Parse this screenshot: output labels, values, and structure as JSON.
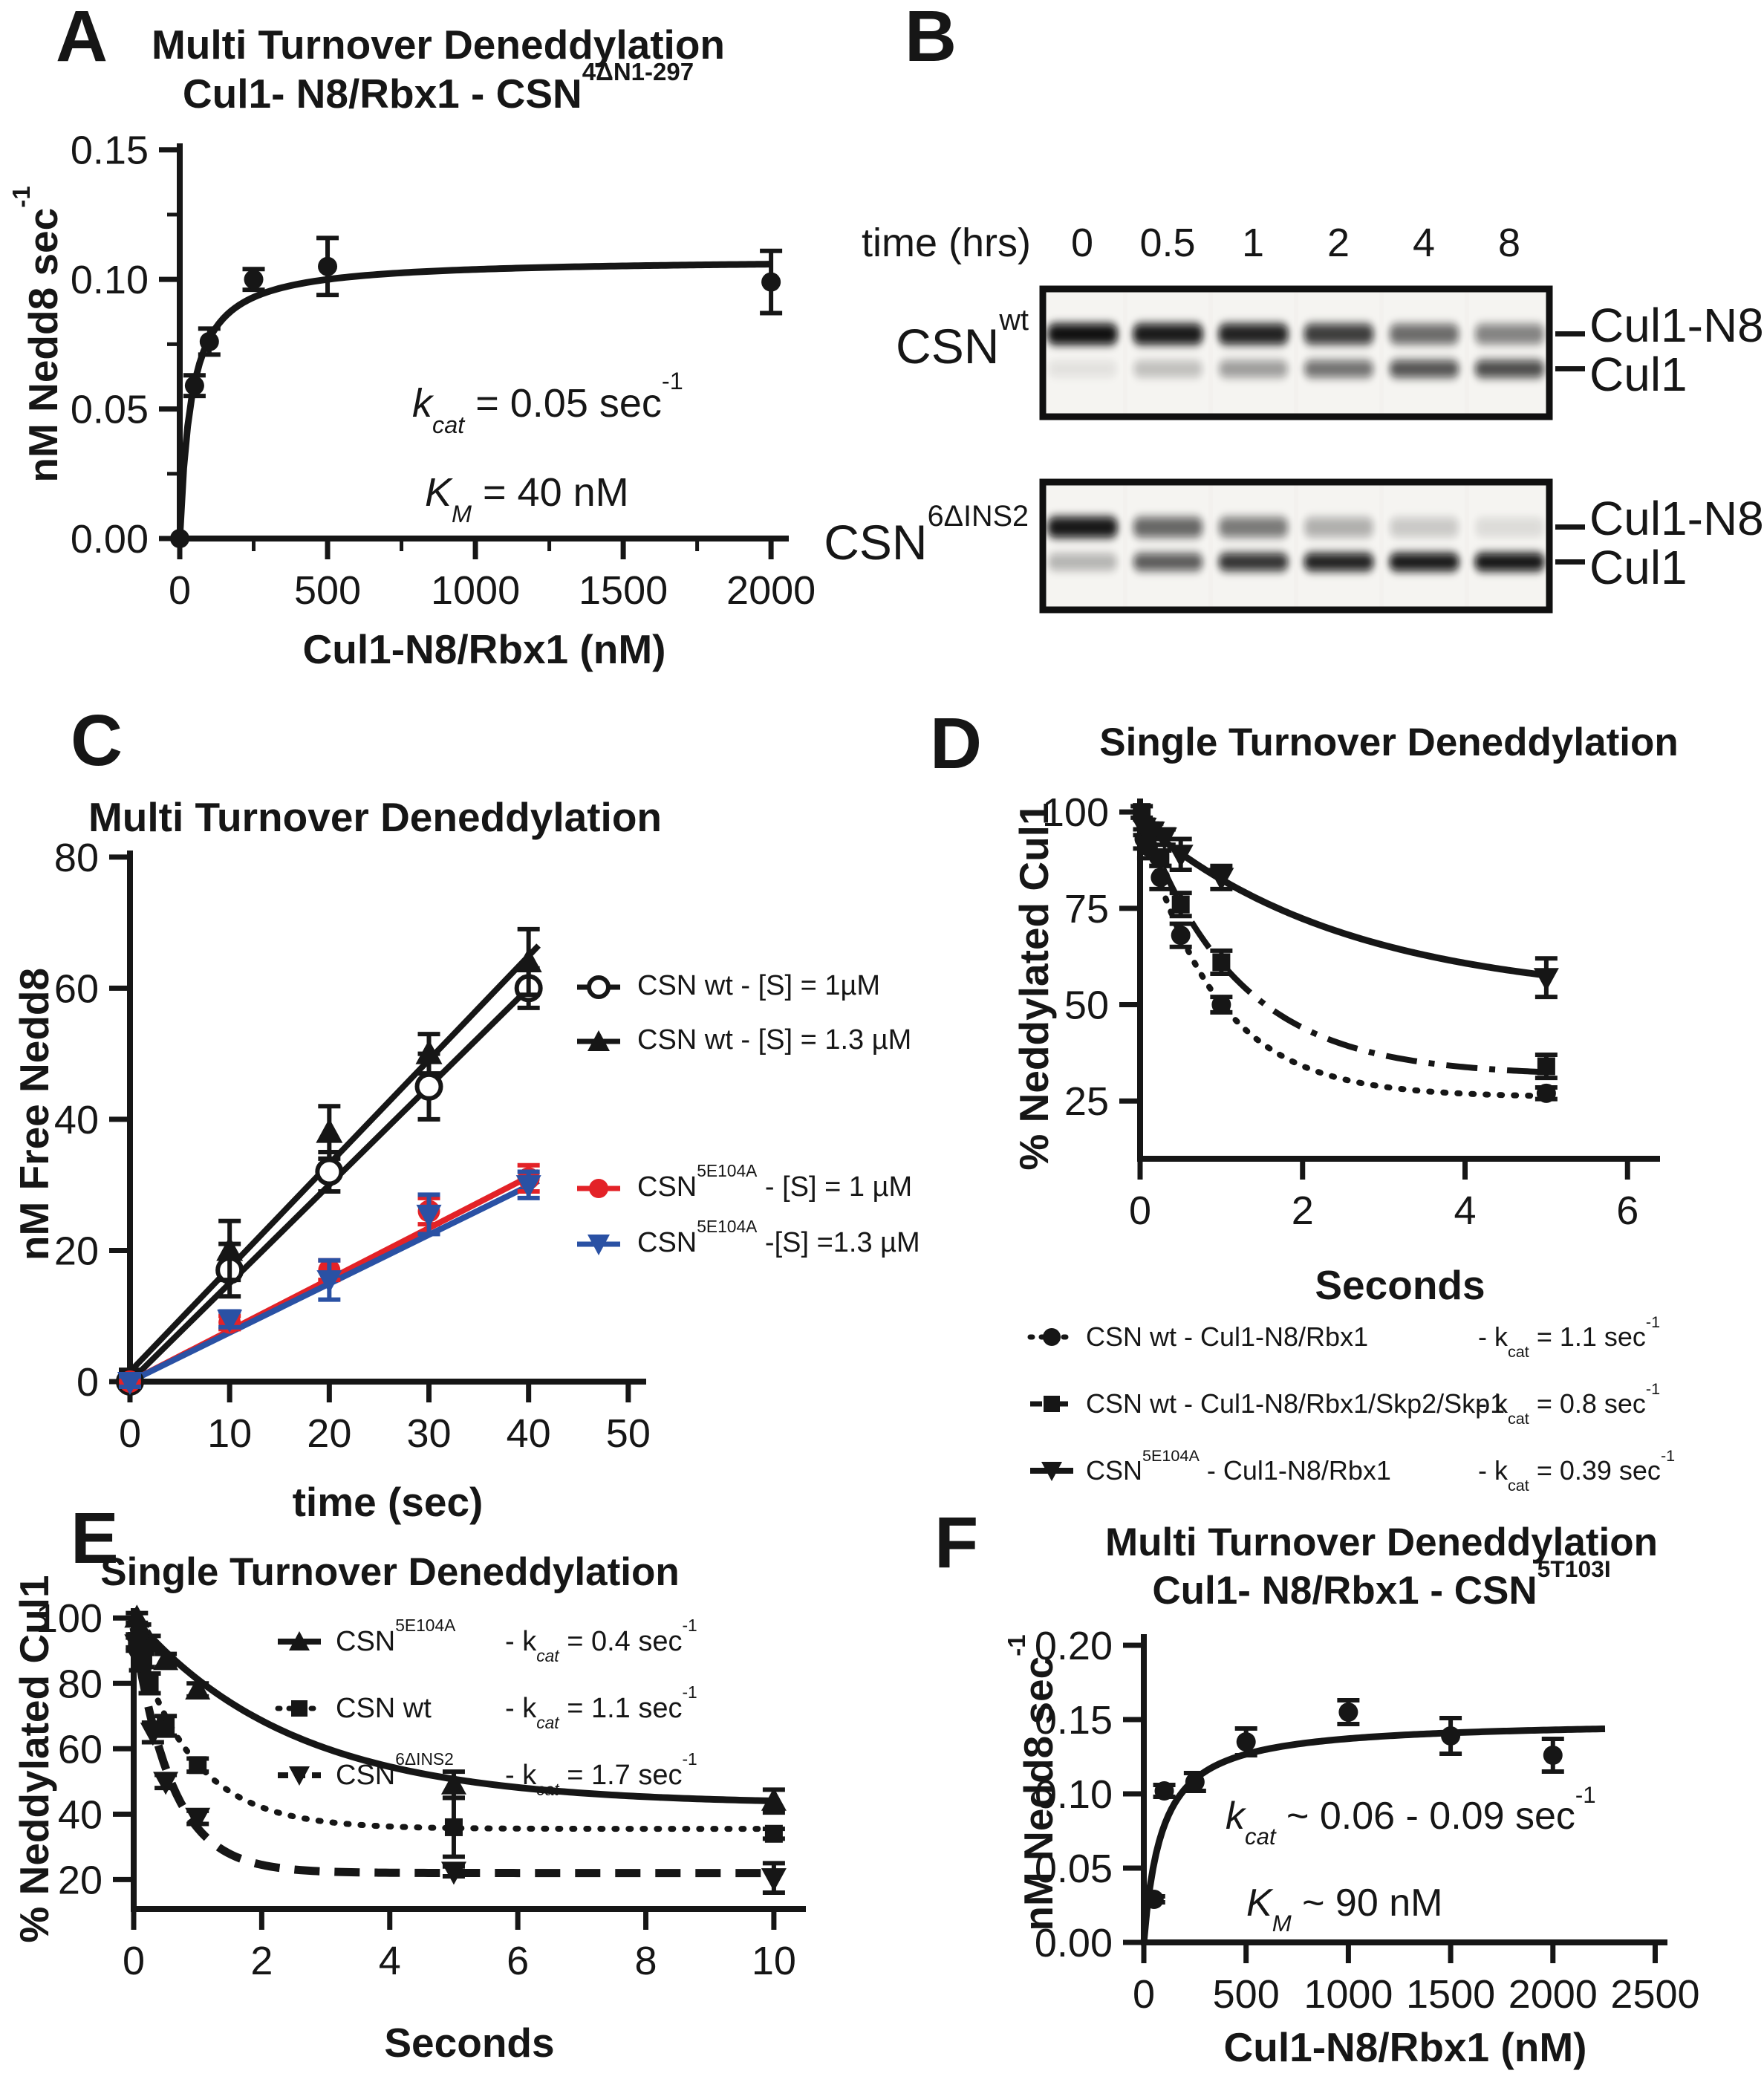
{
  "colors": {
    "black": "#161616",
    "red": "#e32227",
    "blue": "#2a51a4"
  },
  "chart_data": [
    {
      "panel": "A",
      "type": "scatter",
      "title": "Multi Turnover Deneddylation Cul1- N8/Rbx1 - CSN 4ΔN1-297",
      "xlabel": "Cul1-N8/Rbx1 (nM)",
      "ylabel": "nM Nedd8 sec-1",
      "xlim": [
        0,
        2060
      ],
      "ylim": [
        0,
        0.1525
      ],
      "xticks": [
        0,
        500,
        1000,
        1500,
        2000
      ],
      "xtick_labels": [
        "0",
        "500",
        "1000",
        "1500",
        "2000"
      ],
      "xticks_minor": [
        250,
        750,
        1250,
        1750
      ],
      "yticks": [
        0,
        0.05,
        0.1,
        0.15
      ],
      "ytick_labels": [
        "0.00",
        "0.05",
        "0.10",
        "0.15"
      ],
      "yticks_minor": [
        0.025,
        0.075,
        0.125
      ],
      "fit_params": {
        "kcat": "0.05 sec-1",
        "KM": "40 nM"
      },
      "curves": [
        {
          "kind": "mm",
          "vmax": 0.108,
          "km": 40,
          "xmin": 0,
          "xmax": 2005,
          "color": "#161616",
          "width": 9
        }
      ],
      "series": [
        {
          "name": "Cul1-N8/Rbx1 + CSN 4ΔN1-297",
          "marker": "circle",
          "r": 13,
          "color": "#161616",
          "x": [
            0,
            50,
            100,
            250,
            500,
            2000
          ],
          "y": [
            0,
            0.059,
            0.076,
            0.1,
            0.105,
            0.099
          ],
          "err": [
            0,
            0.004,
            0.005,
            0.004,
            0.011,
            0.012
          ]
        }
      ]
    },
    {
      "panel": "C",
      "type": "scatter",
      "title": "Multi Turnover Deneddylation",
      "xlabel": "time (sec)",
      "ylabel": "nM Free Nedd8",
      "xlim": [
        0,
        51.8
      ],
      "ylim": [
        0,
        81
      ],
      "xticks": [
        0,
        10,
        20,
        30,
        40,
        50
      ],
      "xtick_labels": [
        "0",
        "10",
        "20",
        "30",
        "40",
        "50"
      ],
      "yticks": [
        0,
        20,
        40,
        60,
        80
      ],
      "ytick_labels": [
        "0",
        "20",
        "40",
        "60",
        "80"
      ],
      "curves": [
        {
          "kind": "line",
          "x": [
            0,
            41
          ],
          "y": [
            1.5,
            66.5
          ],
          "color": "#161616",
          "width": 8
        },
        {
          "kind": "line",
          "x": [
            0,
            41
          ],
          "y": [
            0,
            61.5
          ],
          "color": "#161616",
          "width": 8
        },
        {
          "kind": "line",
          "x": [
            0,
            41
          ],
          "y": [
            0,
            32
          ],
          "color": "#e32227",
          "width": 8
        },
        {
          "kind": "line",
          "x": [
            0,
            41
          ],
          "y": [
            0,
            30.6
          ],
          "color": "#2a51a4",
          "width": 8
        }
      ],
      "series": [
        {
          "name": "CSN wt - [S] = 1µM",
          "marker": "circle-open",
          "r": 16,
          "color": "#161616",
          "x": [
            0,
            10,
            20,
            30,
            40
          ],
          "y": [
            0,
            17,
            32,
            45,
            60
          ],
          "err": [
            1,
            4,
            3,
            5,
            3
          ]
        },
        {
          "name": "CSN wt - [S] = 1.3 µM",
          "marker": "triangle",
          "r": 17,
          "color": "#161616",
          "x": [
            0,
            10,
            20,
            30,
            40
          ],
          "y": [
            0.8,
            20,
            38,
            50,
            64
          ],
          "err": [
            1,
            4.5,
            4,
            3,
            5
          ]
        },
        {
          "name": "CSN 5E104A - [S] = 1 µM",
          "marker": "circle",
          "r": 15,
          "color": "#e32227",
          "x": [
            0,
            10,
            20,
            30,
            40
          ],
          "y": [
            0,
            9,
            17,
            26,
            31
          ],
          "err": [
            0.8,
            1,
            1.5,
            2,
            2
          ]
        },
        {
          "name": "CSN 5E104A - [S] = 1.3 µM",
          "marker": "triangle-down",
          "r": 16,
          "color": "#2a51a4",
          "x": [
            0,
            10,
            20,
            30,
            40
          ],
          "y": [
            0,
            9.5,
            15.5,
            25.5,
            30
          ],
          "err": [
            0.8,
            1.2,
            3,
            3,
            2
          ]
        }
      ]
    },
    {
      "panel": "D",
      "type": "scatter",
      "title": "Single Turnover Deneddylation",
      "xlabel": "Seconds",
      "ylabel": "% Neddylated Cul1",
      "xlim": [
        0,
        6.4
      ],
      "ylim": [
        10,
        103.5
      ],
      "xticks": [
        0,
        2,
        4,
        6
      ],
      "xtick_labels": [
        "0",
        "2",
        "4",
        "6"
      ],
      "yticks": [
        25,
        50,
        75,
        100
      ],
      "ytick_labels": [
        "25",
        "50",
        "75",
        "100"
      ],
      "curves": [
        {
          "kind": "exp",
          "x0": 0.05,
          "xmax": 5,
          "y0": 95,
          "plateau": 26,
          "k": 1.1,
          "color": "#161616",
          "width": 8,
          "dash": "3 16"
        },
        {
          "kind": "exp",
          "x0": 0,
          "xmax": 5,
          "y0": 100,
          "plateau": 31.5,
          "k": 0.85,
          "color": "#161616",
          "width": 8,
          "dash": "42 16 8 16"
        },
        {
          "kind": "exp",
          "x0": 0,
          "xmax": 5,
          "y0": 97.5,
          "plateau": 51,
          "k": 0.39,
          "color": "#161616",
          "width": 9
        }
      ],
      "series": [
        {
          "name": "CSN wt - Cul1-N8/Rbx1",
          "kcat": "1.1 sec-1",
          "marker": "circle",
          "r": 13,
          "color": "#161616",
          "x": [
            0.05,
            0.1,
            0.25,
            0.5,
            1,
            5
          ],
          "y": [
            93,
            91,
            83,
            68,
            50,
            27
          ],
          "err": [
            2.5,
            3,
            3,
            3,
            2,
            1.5
          ]
        },
        {
          "name": "CSN wt - Cul1-N8/Rbx1/Skp2/Skp1",
          "kcat": "0.8 sec-1",
          "marker": "square",
          "r": 13,
          "color": "#161616",
          "x": [
            0.02,
            0.1,
            0.25,
            0.5,
            1,
            5
          ],
          "y": [
            100,
            95,
            88,
            76,
            61,
            34
          ],
          "err": [
            1.5,
            2,
            2,
            3,
            3,
            3
          ]
        },
        {
          "name": "CSN 5E104A - Cul1-N8/Rbx1",
          "kcat": "0.39 sec-1",
          "marker": "triangle-down",
          "r": 16,
          "color": "#161616",
          "x": [
            0.05,
            0.15,
            0.3,
            0.5,
            1,
            5
          ],
          "y": [
            96,
            95,
            93.5,
            89,
            83,
            57
          ],
          "err": [
            2,
            2,
            2,
            4,
            3,
            5
          ]
        }
      ]
    },
    {
      "panel": "E",
      "type": "scatter",
      "title": "Single Turnover Deneddylation",
      "xlabel": "Seconds",
      "ylabel": "% Neddylated Cul1",
      "xlim": [
        0,
        10.5
      ],
      "ylim": [
        11,
        103
      ],
      "xticks": [
        0,
        2,
        4,
        6,
        8,
        10
      ],
      "xtick_labels": [
        "0",
        "2",
        "4",
        "6",
        "8",
        "10"
      ],
      "yticks": [
        20,
        40,
        60,
        80,
        100
      ],
      "ytick_labels": [
        "20",
        "40",
        "60",
        "80",
        "100"
      ],
      "curves": [
        {
          "kind": "exp",
          "x0": 0,
          "xmax": 10,
          "y0": 100,
          "plateau": 43,
          "k": 0.4,
          "color": "#161616",
          "width": 9
        },
        {
          "kind": "exp",
          "x0": 0,
          "xmax": 10,
          "y0": 95,
          "plateau": 35.5,
          "k": 1.1,
          "color": "#161616",
          "width": 8,
          "dash": "3 16"
        },
        {
          "kind": "exp",
          "x0": 0,
          "xmax": 10,
          "y0": 97,
          "plateau": 22,
          "k": 1.7,
          "color": "#161616",
          "width": 11,
          "dash": "34 20"
        }
      ],
      "series": [
        {
          "name": "CSN 5E104A",
          "kcat": "0.4 sec-1",
          "marker": "triangle",
          "r": 16,
          "color": "#161616",
          "x": [
            0.05,
            0.1,
            0.25,
            0.5,
            1,
            5,
            10
          ],
          "y": [
            100,
            96,
            92.5,
            87,
            78,
            49,
            44
          ],
          "err": [
            1.5,
            2,
            2,
            2,
            2,
            4,
            3.5
          ]
        },
        {
          "name": "CSN wt",
          "kcat": "1.1 sec-1",
          "marker": "square",
          "r": 13,
          "color": "#161616",
          "x": [
            0.05,
            0.15,
            0.25,
            0.5,
            1,
            5,
            10
          ],
          "y": [
            93,
            87,
            80,
            67,
            55,
            36,
            34
          ],
          "err": [
            2,
            2,
            3,
            3,
            2,
            9,
            1.5
          ]
        },
        {
          "name": "CSN 6ΔINS2",
          "kcat": "1.7 sec-1",
          "marker": "triangle-down",
          "r": 16,
          "color": "#161616",
          "x": [
            0.05,
            0.1,
            0.3,
            0.5,
            1,
            5,
            10
          ],
          "y": [
            92,
            87,
            65,
            50,
            39,
            22.5,
            20.5
          ],
          "err": [
            2,
            3,
            3,
            2,
            2,
            1.5,
            4.5
          ]
        }
      ]
    },
    {
      "panel": "F",
      "type": "scatter",
      "title": "Multi Turnover Deneddylation Cul1- N8/Rbx1 - CSN 5T103I",
      "xlabel": "Cul1-N8/Rbx1 (nM)",
      "ylabel": "nM Nedd8 sec-1",
      "xlim": [
        0,
        2560
      ],
      "ylim": [
        0,
        0.2075
      ],
      "xticks": [
        0,
        500,
        1000,
        1500,
        2000,
        2500
      ],
      "xtick_labels": [
        "0",
        "500",
        "1000",
        "1500",
        "2000",
        "2500"
      ],
      "yticks": [
        0,
        0.05,
        0.1,
        0.15,
        0.2
      ],
      "ytick_labels": [
        "0.00",
        "0.05",
        "0.10",
        "0.15",
        "0.20"
      ],
      "fit_params": {
        "kcat": "0.06 - 0.09 sec-1",
        "KM": "90 nM"
      },
      "curves": [
        {
          "kind": "mm",
          "vmax": 0.1495,
          "km": 90,
          "xmin": 0,
          "xmax": 2255,
          "color": "#161616",
          "width": 9
        }
      ],
      "series": [
        {
          "name": "Cul1-N8/Rbx1 + CSN 5T103I",
          "marker": "circle",
          "r": 13,
          "color": "#161616",
          "x": [
            50,
            100,
            250,
            500,
            1000,
            1500,
            2000
          ],
          "y": [
            0.029,
            0.102,
            0.108,
            0.135,
            0.155,
            0.139,
            0.126
          ],
          "err": [
            0.002,
            0.004,
            0.006,
            0.009,
            0.008,
            0.012,
            0.011
          ]
        }
      ]
    }
  ],
  "panels": {
    "A": {
      "label": "A",
      "title": "Multi Turnover Deneddylation",
      "subtitle_base": "Cul1- N8/Rbx1 - CSN",
      "subtitle_sup": "4ΔN1-297",
      "xlabel": "Cul1-N8/Rbx1 (nM)",
      "ylabel_base": "nM Nedd8 sec",
      "ylabel_sup": "-1",
      "ann_kcat": {
        "sym": "k",
        "sub": "cat",
        "mid": " = 0.05 sec",
        "sup": "-1"
      },
      "ann_km": {
        "sym": "K",
        "sub": "M",
        "mid": " = 40 nM",
        "sup": ""
      }
    },
    "B": {
      "label": "B",
      "time_label": "time (hrs)",
      "timepoints": [
        "0",
        "0.5",
        "1",
        "2",
        "4",
        "8"
      ],
      "gels": [
        {
          "name_base": "CSN",
          "name_sup": "wt",
          "band_label_top": "Cul1-N8",
          "band_label_bottom": "Cul1",
          "cul1n8_intensity": [
            0.97,
            0.9,
            0.85,
            0.7,
            0.48,
            0.38
          ],
          "cul1_intensity": [
            0.05,
            0.16,
            0.28,
            0.45,
            0.58,
            0.62
          ]
        },
        {
          "name_base": "CSN",
          "name_sup": "6ΔINS2",
          "band_label_top": "Cul1-N8",
          "band_label_bottom": "Cul1",
          "cul1n8_intensity": [
            0.92,
            0.5,
            0.42,
            0.22,
            0.13,
            0.07
          ],
          "cul1_intensity": [
            0.2,
            0.55,
            0.75,
            0.85,
            0.9,
            0.93
          ]
        }
      ]
    },
    "C": {
      "label": "C",
      "title": "Multi Turnover Deneddylation",
      "xlabel": "time (sec)",
      "ylabel": "nM Free Nedd8",
      "legend": [
        {
          "pre": "CSN wt",
          "sup": "",
          "post": "  - [S] = 1µM"
        },
        {
          "pre": "CSN wt",
          "sup": "",
          "post": "  - [S] = 1.3 µM"
        },
        {
          "pre": "CSN",
          "sup": "5E104A",
          "post": "  - [S] = 1 µM"
        },
        {
          "pre": "CSN",
          "sup": "5E104A",
          "post": " -[S] =1.3 µM"
        }
      ]
    },
    "D": {
      "label": "D",
      "title": "Single Turnover Deneddylation",
      "xlabel": "Seconds",
      "ylabel_pre": "% Neddylated Cul1",
      "legend": [
        {
          "pre": "CSN wt - Cul1-N8/Rbx1",
          "sup": "",
          "post": "",
          "k_pre": "- k",
          "k_sub": "cat",
          "k_mid": " = 1.1 sec",
          "k_sup": "-1"
        },
        {
          "pre": "CSN wt - Cul1-N8/Rbx1/Skp2/Skp1",
          "sup": "",
          "post": "",
          "k_pre": "- k",
          "k_sub": "cat",
          "k_mid": " = 0.8 sec",
          "k_sup": "-1"
        },
        {
          "pre": "CSN",
          "sup": "5E104A",
          "post": " - Cul1-N8/Rbx1",
          "k_pre": "- k",
          "k_sub": "cat",
          "k_mid": " = 0.39 sec",
          "k_sup": "-1"
        }
      ]
    },
    "E": {
      "label": "E",
      "title": "Single Turnover Deneddylation",
      "xlabel": "Seconds",
      "ylabel_pre": "% Neddylated Cul1",
      "legend": [
        {
          "pre": "CSN",
          "sup": "5E104A",
          "post": "",
          "k_pre": "- k",
          "k_sub": "cat",
          "k_mid": " = 0.4 sec",
          "k_sup": "-1"
        },
        {
          "pre": "CSN wt",
          "sup": "",
          "post": "",
          "k_pre": "- k",
          "k_sub": "cat",
          "k_mid": " = 1.1 sec",
          "k_sup": "-1"
        },
        {
          "pre": "CSN",
          "sup": "6ΔINS2",
          "post": "",
          "k_pre": "- k",
          "k_sub": "cat",
          "k_mid": " = 1.7 sec",
          "k_sup": "-1"
        }
      ]
    },
    "F": {
      "label": "F",
      "title": "Multi Turnover Deneddylation",
      "subtitle_base": "Cul1- N8/Rbx1 - CSN",
      "subtitle_sup": "5T103I",
      "xlabel": "Cul1-N8/Rbx1 (nM)",
      "ylabel_base": "nM Nedd8 sec",
      "ylabel_sup": "-1",
      "ann_kcat": {
        "sym": "k",
        "sub": "cat",
        "mid": " ~  0.06 - 0.09 sec",
        "sup": "-1"
      },
      "ann_km": {
        "sym": "K",
        "sub": "M",
        "mid": " ~  90 nM",
        "sup": ""
      }
    }
  }
}
